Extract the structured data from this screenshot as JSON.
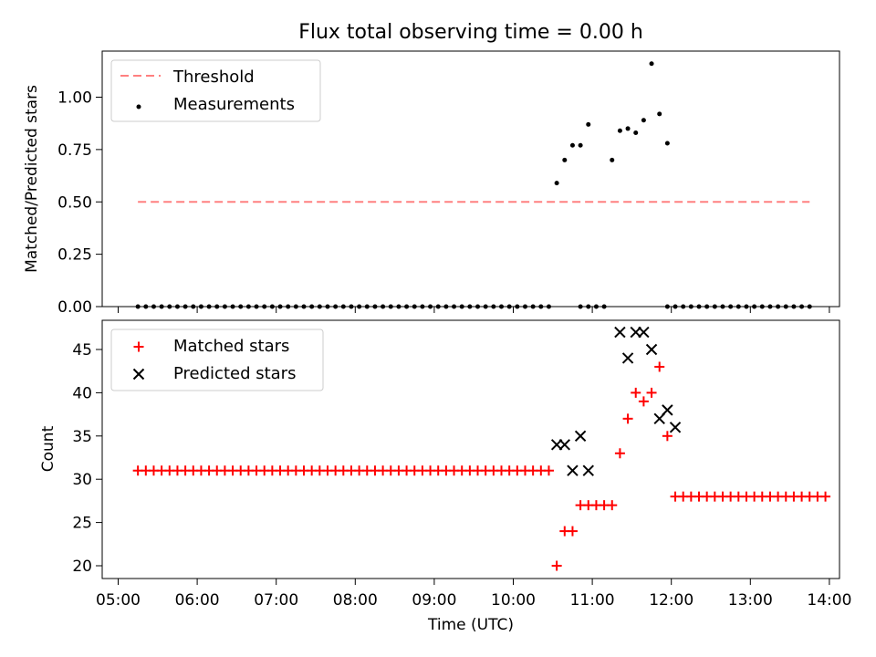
{
  "title": "Flux total observing time = 0.00 h",
  "colors": {
    "threshold": "#ff8080",
    "measurement": "#000000",
    "matched": "#ff0000",
    "predicted": "#000000"
  },
  "x_ticks": [
    "05:00",
    "06:00",
    "07:00",
    "08:00",
    "09:00",
    "10:00",
    "11:00",
    "12:00",
    "13:00",
    "14:00"
  ],
  "xlabel": "Time (UTC)",
  "chart_data": [
    {
      "type": "scatter",
      "ylabel": "Matched/Predicted stars",
      "ylim": [
        0,
        1.2
      ],
      "xlim": [
        "04:50",
        "14:10"
      ],
      "yticks": [
        "0.00",
        "0.25",
        "0.50",
        "0.75",
        "1.00"
      ],
      "legend_placement": "top-left",
      "threshold": {
        "name": "Threshold",
        "y": 0.5,
        "x_range": [
          "05:15",
          "13:45"
        ],
        "style": "dashed"
      },
      "series": [
        {
          "name": "Measurements",
          "marker": "dot",
          "points": [
            [
              "05:15",
              0
            ],
            [
              "05:21",
              0
            ],
            [
              "05:27",
              0
            ],
            [
              "05:33",
              0
            ],
            [
              "05:39",
              0
            ],
            [
              "05:45",
              0
            ],
            [
              "05:51",
              0
            ],
            [
              "05:57",
              0
            ],
            [
              "06:03",
              0
            ],
            [
              "06:09",
              0
            ],
            [
              "06:15",
              0
            ],
            [
              "06:21",
              0
            ],
            [
              "06:27",
              0
            ],
            [
              "06:33",
              0
            ],
            [
              "06:39",
              0
            ],
            [
              "06:45",
              0
            ],
            [
              "06:51",
              0
            ],
            [
              "06:57",
              0
            ],
            [
              "07:03",
              0
            ],
            [
              "07:09",
              0
            ],
            [
              "07:15",
              0
            ],
            [
              "07:21",
              0
            ],
            [
              "07:27",
              0
            ],
            [
              "07:33",
              0
            ],
            [
              "07:39",
              0
            ],
            [
              "07:45",
              0
            ],
            [
              "07:51",
              0
            ],
            [
              "07:57",
              0
            ],
            [
              "08:03",
              0
            ],
            [
              "08:09",
              0
            ],
            [
              "08:15",
              0
            ],
            [
              "08:21",
              0
            ],
            [
              "08:27",
              0
            ],
            [
              "08:33",
              0
            ],
            [
              "08:39",
              0
            ],
            [
              "08:45",
              0
            ],
            [
              "08:51",
              0
            ],
            [
              "08:57",
              0
            ],
            [
              "09:03",
              0
            ],
            [
              "09:09",
              0
            ],
            [
              "09:15",
              0
            ],
            [
              "09:21",
              0
            ],
            [
              "09:27",
              0
            ],
            [
              "09:33",
              0
            ],
            [
              "09:39",
              0
            ],
            [
              "09:45",
              0
            ],
            [
              "09:51",
              0
            ],
            [
              "09:57",
              0
            ],
            [
              "10:03",
              0
            ],
            [
              "10:09",
              0
            ],
            [
              "10:15",
              0
            ],
            [
              "10:21",
              0
            ],
            [
              "10:27",
              0
            ],
            [
              "10:33",
              0.59
            ],
            [
              "10:39",
              0.7
            ],
            [
              "10:45",
              0.77
            ],
            [
              "10:51",
              0.77
            ],
            [
              "10:57",
              0.87
            ],
            [
              "10:51",
              0
            ],
            [
              "10:57",
              0
            ],
            [
              "11:03",
              0
            ],
            [
              "11:09",
              0
            ],
            [
              "11:15",
              0.7
            ],
            [
              "11:21",
              0.84
            ],
            [
              "11:27",
              0.85
            ],
            [
              "11:33",
              0.83
            ],
            [
              "11:39",
              0.89
            ],
            [
              "11:45",
              1.16
            ],
            [
              "11:51",
              0.92
            ],
            [
              "11:57",
              0.78
            ],
            [
              "11:57",
              0
            ],
            [
              "12:03",
              0
            ],
            [
              "12:09",
              0
            ],
            [
              "12:15",
              0
            ],
            [
              "12:21",
              0
            ],
            [
              "12:27",
              0
            ],
            [
              "12:33",
              0
            ],
            [
              "12:39",
              0
            ],
            [
              "12:45",
              0
            ],
            [
              "12:51",
              0
            ],
            [
              "12:57",
              0
            ],
            [
              "13:03",
              0
            ],
            [
              "13:09",
              0
            ],
            [
              "13:15",
              0
            ],
            [
              "13:21",
              0
            ],
            [
              "13:27",
              0
            ],
            [
              "13:33",
              0
            ],
            [
              "13:39",
              0
            ],
            [
              "13:45",
              0
            ]
          ]
        }
      ]
    },
    {
      "type": "scatter",
      "ylabel": "Count",
      "ylim": [
        18.7,
        48.7
      ],
      "xlim": [
        "04:50",
        "14:10"
      ],
      "yticks": [
        "20",
        "25",
        "30",
        "35",
        "40",
        "45"
      ],
      "legend_placement": "top-left",
      "series": [
        {
          "name": "Matched stars",
          "marker": "plus",
          "points": [
            [
              "05:15",
              31
            ],
            [
              "05:21",
              31
            ],
            [
              "05:27",
              31
            ],
            [
              "05:33",
              31
            ],
            [
              "05:39",
              31
            ],
            [
              "05:45",
              31
            ],
            [
              "05:51",
              31
            ],
            [
              "05:57",
              31
            ],
            [
              "06:03",
              31
            ],
            [
              "06:09",
              31
            ],
            [
              "06:15",
              31
            ],
            [
              "06:21",
              31
            ],
            [
              "06:27",
              31
            ],
            [
              "06:33",
              31
            ],
            [
              "06:39",
              31
            ],
            [
              "06:45",
              31
            ],
            [
              "06:51",
              31
            ],
            [
              "06:57",
              31
            ],
            [
              "07:03",
              31
            ],
            [
              "07:09",
              31
            ],
            [
              "07:15",
              31
            ],
            [
              "07:21",
              31
            ],
            [
              "07:27",
              31
            ],
            [
              "07:33",
              31
            ],
            [
              "07:39",
              31
            ],
            [
              "07:45",
              31
            ],
            [
              "07:51",
              31
            ],
            [
              "07:57",
              31
            ],
            [
              "08:03",
              31
            ],
            [
              "08:09",
              31
            ],
            [
              "08:15",
              31
            ],
            [
              "08:21",
              31
            ],
            [
              "08:27",
              31
            ],
            [
              "08:33",
              31
            ],
            [
              "08:39",
              31
            ],
            [
              "08:45",
              31
            ],
            [
              "08:51",
              31
            ],
            [
              "08:57",
              31
            ],
            [
              "09:03",
              31
            ],
            [
              "09:09",
              31
            ],
            [
              "09:15",
              31
            ],
            [
              "09:21",
              31
            ],
            [
              "09:27",
              31
            ],
            [
              "09:33",
              31
            ],
            [
              "09:39",
              31
            ],
            [
              "09:45",
              31
            ],
            [
              "09:51",
              31
            ],
            [
              "09:57",
              31
            ],
            [
              "10:03",
              31
            ],
            [
              "10:09",
              31
            ],
            [
              "10:15",
              31
            ],
            [
              "10:21",
              31
            ],
            [
              "10:27",
              31
            ],
            [
              "10:33",
              20
            ],
            [
              "10:39",
              24
            ],
            [
              "10:45",
              24
            ],
            [
              "10:51",
              27
            ],
            [
              "10:57",
              27
            ],
            [
              "11:03",
              27
            ],
            [
              "11:09",
              27
            ],
            [
              "11:15",
              27
            ],
            [
              "11:21",
              33
            ],
            [
              "11:27",
              37
            ],
            [
              "11:33",
              40
            ],
            [
              "11:39",
              39
            ],
            [
              "11:45",
              40
            ],
            [
              "11:51",
              43
            ],
            [
              "11:57",
              35
            ],
            [
              "12:03",
              28
            ],
            [
              "12:09",
              28
            ],
            [
              "12:15",
              28
            ],
            [
              "12:21",
              28
            ],
            [
              "12:27",
              28
            ],
            [
              "12:33",
              28
            ],
            [
              "12:39",
              28
            ],
            [
              "12:45",
              28
            ],
            [
              "12:51",
              28
            ],
            [
              "12:57",
              28
            ],
            [
              "13:03",
              28
            ],
            [
              "13:09",
              28
            ],
            [
              "13:15",
              28
            ],
            [
              "13:21",
              28
            ],
            [
              "13:27",
              28
            ],
            [
              "13:33",
              28
            ],
            [
              "13:39",
              28
            ],
            [
              "13:45",
              28
            ],
            [
              "13:51",
              28
            ],
            [
              "13:57",
              28
            ]
          ]
        },
        {
          "name": "Predicted stars",
          "marker": "x",
          "points": [
            [
              "10:33",
              34
            ],
            [
              "10:39",
              34
            ],
            [
              "10:45",
              31
            ],
            [
              "10:51",
              35
            ],
            [
              "10:57",
              31
            ],
            [
              "11:21",
              47
            ],
            [
              "11:27",
              44
            ],
            [
              "11:33",
              47
            ],
            [
              "11:39",
              47
            ],
            [
              "11:45",
              45
            ],
            [
              "11:51",
              37
            ],
            [
              "11:57",
              38
            ],
            [
              "12:03",
              36
            ]
          ]
        }
      ]
    }
  ]
}
